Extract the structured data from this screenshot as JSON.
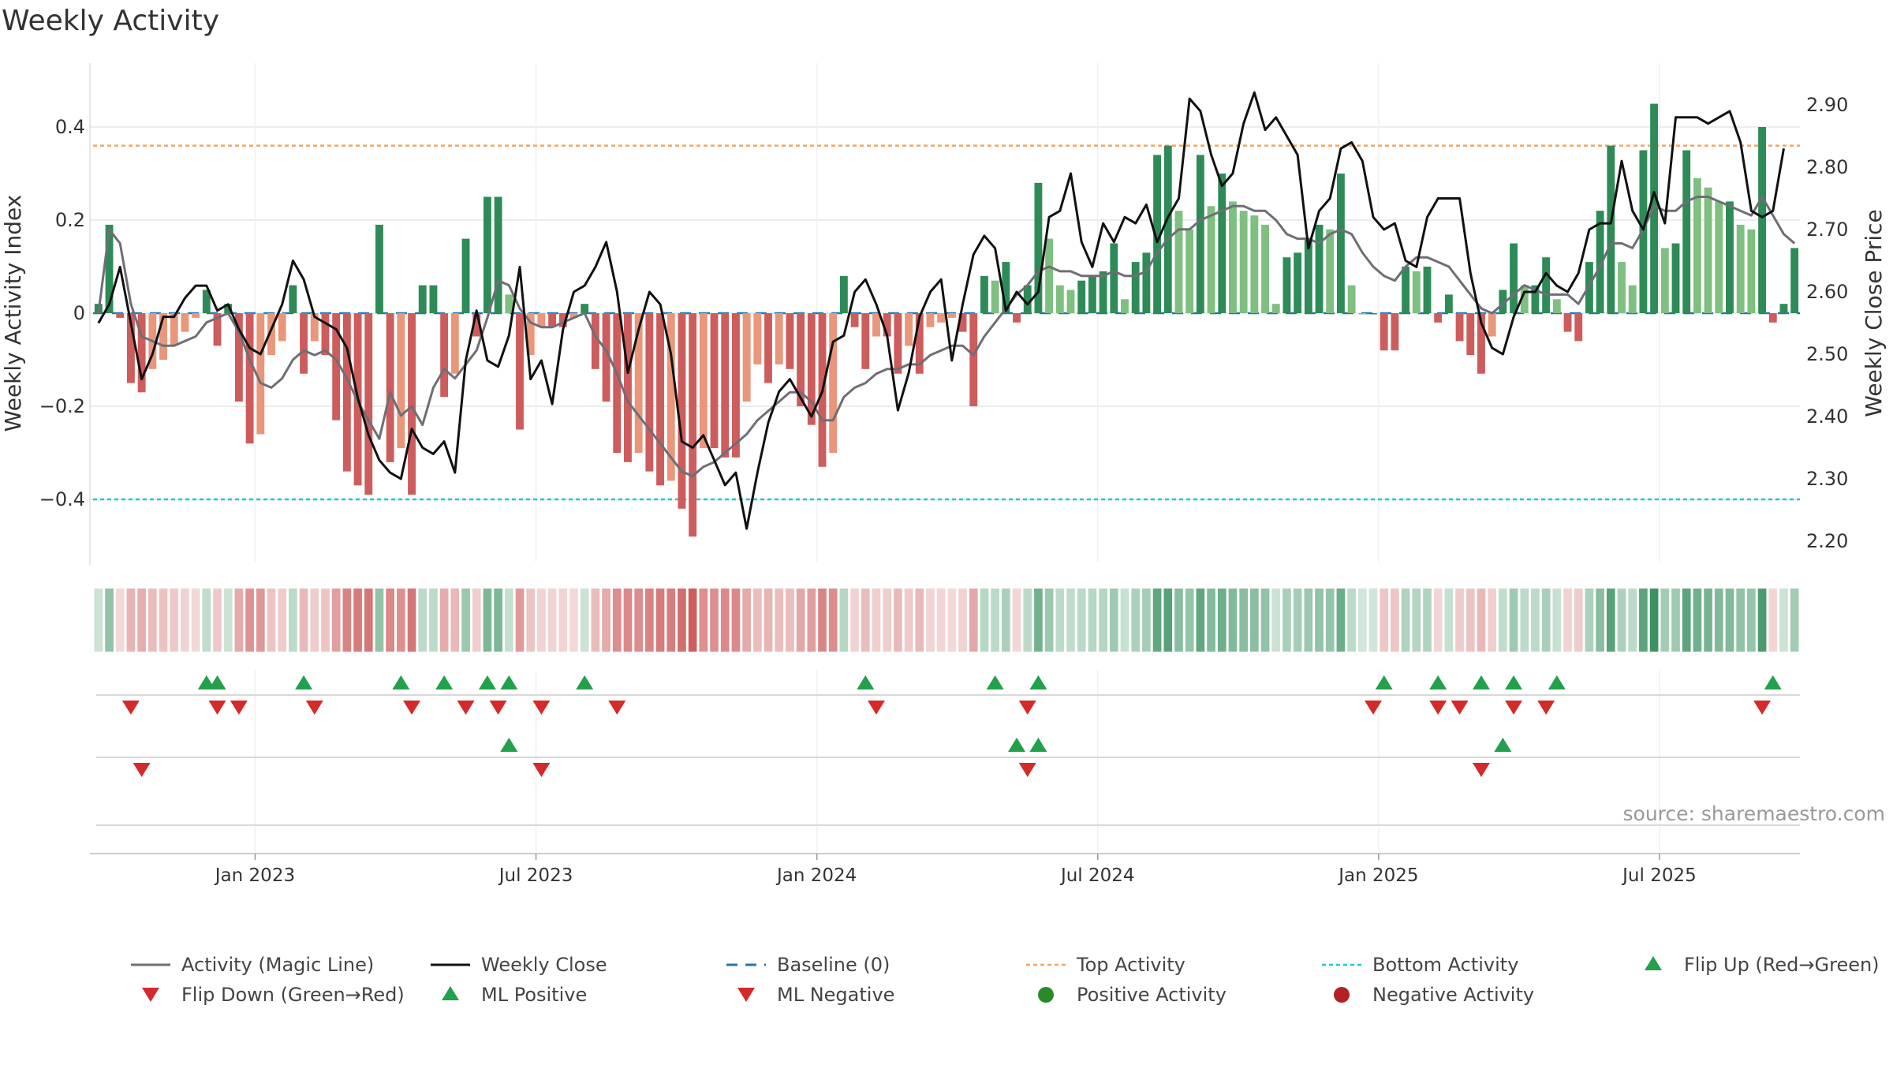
{
  "title": "Weekly Activity",
  "source": "source: sharemaestro.com",
  "colors": {
    "pos_dark": "#2e8b57",
    "pos_light": "#7fbf7f",
    "neg_dark": "#cd5c5c",
    "neg_light": "#e9967a",
    "close": "#111111",
    "magic": "#6e6e76",
    "baseline": "#1f77b4",
    "top": "#f4a460",
    "bottom": "#1ec8d8",
    "up": "#22a04b",
    "down": "#d42a2a"
  },
  "chart_data": {
    "type": "bar+line",
    "title": "Weekly Activity",
    "ylabel_left": "Weekly Activity Index",
    "ylabel_right": "Weekly Close Price",
    "ylim_left": [
      -0.53,
      0.53
    ],
    "ylim_right": [
      2.175,
      2.95
    ],
    "left_ticks": [
      {
        "v": 0.4,
        "label": "0.4"
      },
      {
        "v": 0.2,
        "label": "0.2"
      },
      {
        "v": 0,
        "label": "0"
      },
      {
        "v": -0.2,
        "label": "−0.2"
      },
      {
        "v": -0.4,
        "label": "−0.4"
      }
    ],
    "right_ticks": [
      {
        "v": 2.9,
        "label": "2.90"
      },
      {
        "v": 2.8,
        "label": "2.80"
      },
      {
        "v": 2.7,
        "label": "2.70"
      },
      {
        "v": 2.6,
        "label": "2.60"
      },
      {
        "v": 2.5,
        "label": "2.50"
      },
      {
        "v": 2.4,
        "label": "2.40"
      },
      {
        "v": 2.3,
        "label": "2.30"
      },
      {
        "v": 2.2,
        "label": "2.20"
      }
    ],
    "x_ticks": [
      {
        "w": 15,
        "label": "Jan 2023"
      },
      {
        "w": 41,
        "label": "Jul 2023"
      },
      {
        "w": 67,
        "label": "Jan 2024"
      },
      {
        "w": 93,
        "label": "Jul 2024"
      },
      {
        "w": 119,
        "label": "Jan 2025"
      },
      {
        "w": 145,
        "label": "Jul 2025"
      }
    ],
    "top_activity": 0.36,
    "bottom_activity": -0.4,
    "baseline": 0,
    "activity": [
      0.02,
      0.19,
      -0.01,
      -0.15,
      -0.17,
      -0.12,
      -0.1,
      -0.07,
      -0.04,
      -0.01,
      0.05,
      -0.07,
      0.02,
      -0.19,
      -0.28,
      -0.26,
      -0.09,
      -0.06,
      0.06,
      -0.13,
      -0.06,
      -0.09,
      -0.23,
      -0.34,
      -0.37,
      -0.39,
      0.19,
      -0.32,
      -0.29,
      -0.39,
      0.06,
      0.06,
      -0.18,
      -0.13,
      0.16,
      -0.05,
      0.25,
      0.25,
      0.04,
      -0.25,
      -0.09,
      -0.03,
      -0.03,
      -0.03,
      -0.01,
      0.02,
      -0.12,
      -0.19,
      -0.3,
      -0.32,
      -0.3,
      -0.34,
      -0.37,
      -0.36,
      -0.42,
      -0.48,
      -0.29,
      -0.29,
      -0.31,
      -0.31,
      -0.19,
      -0.11,
      -0.15,
      -0.11,
      -0.12,
      -0.2,
      -0.24,
      -0.33,
      -0.3,
      0.08,
      -0.03,
      -0.12,
      -0.05,
      -0.05,
      -0.13,
      -0.07,
      -0.13,
      -0.03,
      -0.02,
      -0.01,
      -0.04,
      -0.2,
      0.08,
      0.07,
      0.11,
      -0.02,
      0.06,
      0.28,
      0.16,
      0.06,
      0.05,
      0.07,
      0.08,
      0.09,
      0.15,
      0.03,
      0.11,
      0.13,
      0.34,
      0.36,
      0.22,
      0.18,
      0.34,
      0.23,
      0.3,
      0.24,
      0.22,
      0.21,
      0.19,
      0.02,
      0.12,
      0.13,
      0.16,
      0.19,
      0.18,
      0.3,
      0.06,
      0,
      0,
      -0.08,
      -0.08,
      0.1,
      0.09,
      0.1,
      -0.02,
      0.04,
      -0.06,
      -0.09,
      -0.13,
      -0.05,
      0.05,
      0.15,
      0.06,
      0.06,
      0.12,
      0.03,
      -0.04,
      -0.06,
      0.11,
      0.22,
      0.36,
      0.11,
      0.06,
      0.35,
      0.45,
      0.14,
      0.15,
      0.35,
      0.29,
      0.27,
      0.24,
      0.24,
      0.19,
      0.18,
      0.4,
      -0.02,
      0.02,
      0.14
    ],
    "magic_line": [
      0.0,
      0.18,
      0.15,
      0.02,
      -0.05,
      -0.06,
      -0.07,
      -0.07,
      -0.06,
      -0.05,
      -0.02,
      -0.01,
      0.0,
      -0.04,
      -0.1,
      -0.15,
      -0.16,
      -0.14,
      -0.1,
      -0.08,
      -0.09,
      -0.08,
      -0.1,
      -0.14,
      -0.19,
      -0.23,
      -0.27,
      -0.17,
      -0.22,
      -0.2,
      -0.24,
      -0.16,
      -0.12,
      -0.14,
      -0.11,
      -0.08,
      -0.01,
      0.07,
      0.06,
      0.01,
      -0.02,
      -0.03,
      -0.03,
      -0.02,
      -0.01,
      0.0,
      -0.05,
      -0.08,
      -0.13,
      -0.19,
      -0.22,
      -0.25,
      -0.28,
      -0.31,
      -0.34,
      -0.35,
      -0.33,
      -0.32,
      -0.3,
      -0.28,
      -0.26,
      -0.23,
      -0.21,
      -0.19,
      -0.17,
      -0.17,
      -0.19,
      -0.23,
      -0.23,
      -0.18,
      -0.16,
      -0.15,
      -0.13,
      -0.12,
      -0.12,
      -0.11,
      -0.11,
      -0.09,
      -0.08,
      -0.07,
      -0.07,
      -0.09,
      -0.05,
      -0.02,
      0.01,
      0.04,
      0.06,
      0.09,
      0.1,
      0.09,
      0.09,
      0.08,
      0.08,
      0.08,
      0.09,
      0.08,
      0.08,
      0.09,
      0.13,
      0.16,
      0.18,
      0.18,
      0.2,
      0.21,
      0.22,
      0.23,
      0.23,
      0.22,
      0.22,
      0.2,
      0.17,
      0.16,
      0.16,
      0.15,
      0.17,
      0.18,
      0.17,
      0.13,
      0.1,
      0.08,
      0.07,
      0.1,
      0.12,
      0.12,
      0.11,
      0.1,
      0.07,
      0.04,
      0.01,
      0.0,
      0.02,
      0.04,
      0.06,
      0.05,
      0.04,
      0.04,
      0.04,
      0.02,
      0.06,
      0.1,
      0.15,
      0.15,
      0.14,
      0.18,
      0.23,
      0.22,
      0.22,
      0.24,
      0.25,
      0.25,
      0.24,
      0.23,
      0.22,
      0.21,
      0.25,
      0.21,
      0.17,
      0.15
    ],
    "weekly_close": [
      2.55,
      2.58,
      2.64,
      2.55,
      2.46,
      2.5,
      2.56,
      2.56,
      2.59,
      2.61,
      2.61,
      2.57,
      2.58,
      2.54,
      2.51,
      2.5,
      2.54,
      2.58,
      2.65,
      2.62,
      2.56,
      2.55,
      2.54,
      2.51,
      2.43,
      2.37,
      2.33,
      2.31,
      2.3,
      2.38,
      2.35,
      2.34,
      2.36,
      2.31,
      2.49,
      2.57,
      2.49,
      2.48,
      2.53,
      2.64,
      2.46,
      2.49,
      2.42,
      2.54,
      2.6,
      2.61,
      2.64,
      2.68,
      2.6,
      2.47,
      2.54,
      2.6,
      2.58,
      2.5,
      2.36,
      2.35,
      2.37,
      2.33,
      2.29,
      2.31,
      2.22,
      2.31,
      2.39,
      2.44,
      2.46,
      2.43,
      2.4,
      2.44,
      2.52,
      2.53,
      2.6,
      2.62,
      2.58,
      2.53,
      2.41,
      2.47,
      2.56,
      2.6,
      2.62,
      2.49,
      2.58,
      2.66,
      2.69,
      2.67,
      2.57,
      2.6,
      2.58,
      2.6,
      2.72,
      2.73,
      2.79,
      2.68,
      2.64,
      2.71,
      2.68,
      2.72,
      2.71,
      2.74,
      2.68,
      2.72,
      2.75,
      2.91,
      2.89,
      2.82,
      2.77,
      2.79,
      2.87,
      2.92,
      2.86,
      2.88,
      2.85,
      2.82,
      2.67,
      2.73,
      2.75,
      2.83,
      2.84,
      2.81,
      2.72,
      2.7,
      2.71,
      2.65,
      2.64,
      2.72,
      2.75,
      2.75,
      2.75,
      2.63,
      2.55,
      2.51,
      2.5,
      2.56,
      2.6,
      2.6,
      2.63,
      2.61,
      2.6,
      2.63,
      2.7,
      2.71,
      2.71,
      2.81,
      2.73,
      2.7,
      2.76,
      2.71,
      2.88,
      2.88,
      2.88,
      2.87,
      2.88,
      2.89,
      2.84,
      2.73,
      2.72,
      2.73,
      2.83
    ],
    "flip_up": [
      10,
      11,
      19,
      28,
      32,
      36,
      38,
      45,
      71,
      83,
      87,
      119,
      124,
      128,
      131,
      135,
      155
    ],
    "flip_down": [
      3,
      11,
      13,
      20,
      29,
      34,
      37,
      41,
      48,
      72,
      86,
      118,
      124,
      126,
      131,
      134,
      154
    ],
    "ml_positive": [
      38,
      85,
      87,
      130
    ],
    "ml_negative": [
      4,
      41,
      86,
      128
    ],
    "positive_activity": [],
    "negative_activity": [],
    "legend": [
      {
        "key": "magic",
        "label": "Activity (Magic Line)"
      },
      {
        "key": "close",
        "label": "Weekly Close"
      },
      {
        "key": "baseline",
        "label": "Baseline (0)"
      },
      {
        "key": "top",
        "label": "Top Activity"
      },
      {
        "key": "bottom",
        "label": "Bottom Activity"
      },
      {
        "key": "flipup",
        "label": "Flip Up (Red→Green)"
      },
      {
        "key": "flipdown",
        "label": "Flip Down (Green→Red)"
      },
      {
        "key": "mlpos",
        "label": "ML Positive"
      },
      {
        "key": "mlneg",
        "label": "ML Negative"
      },
      {
        "key": "posact",
        "label": "Positive Activity"
      },
      {
        "key": "negact",
        "label": "Negative Activity"
      }
    ]
  }
}
